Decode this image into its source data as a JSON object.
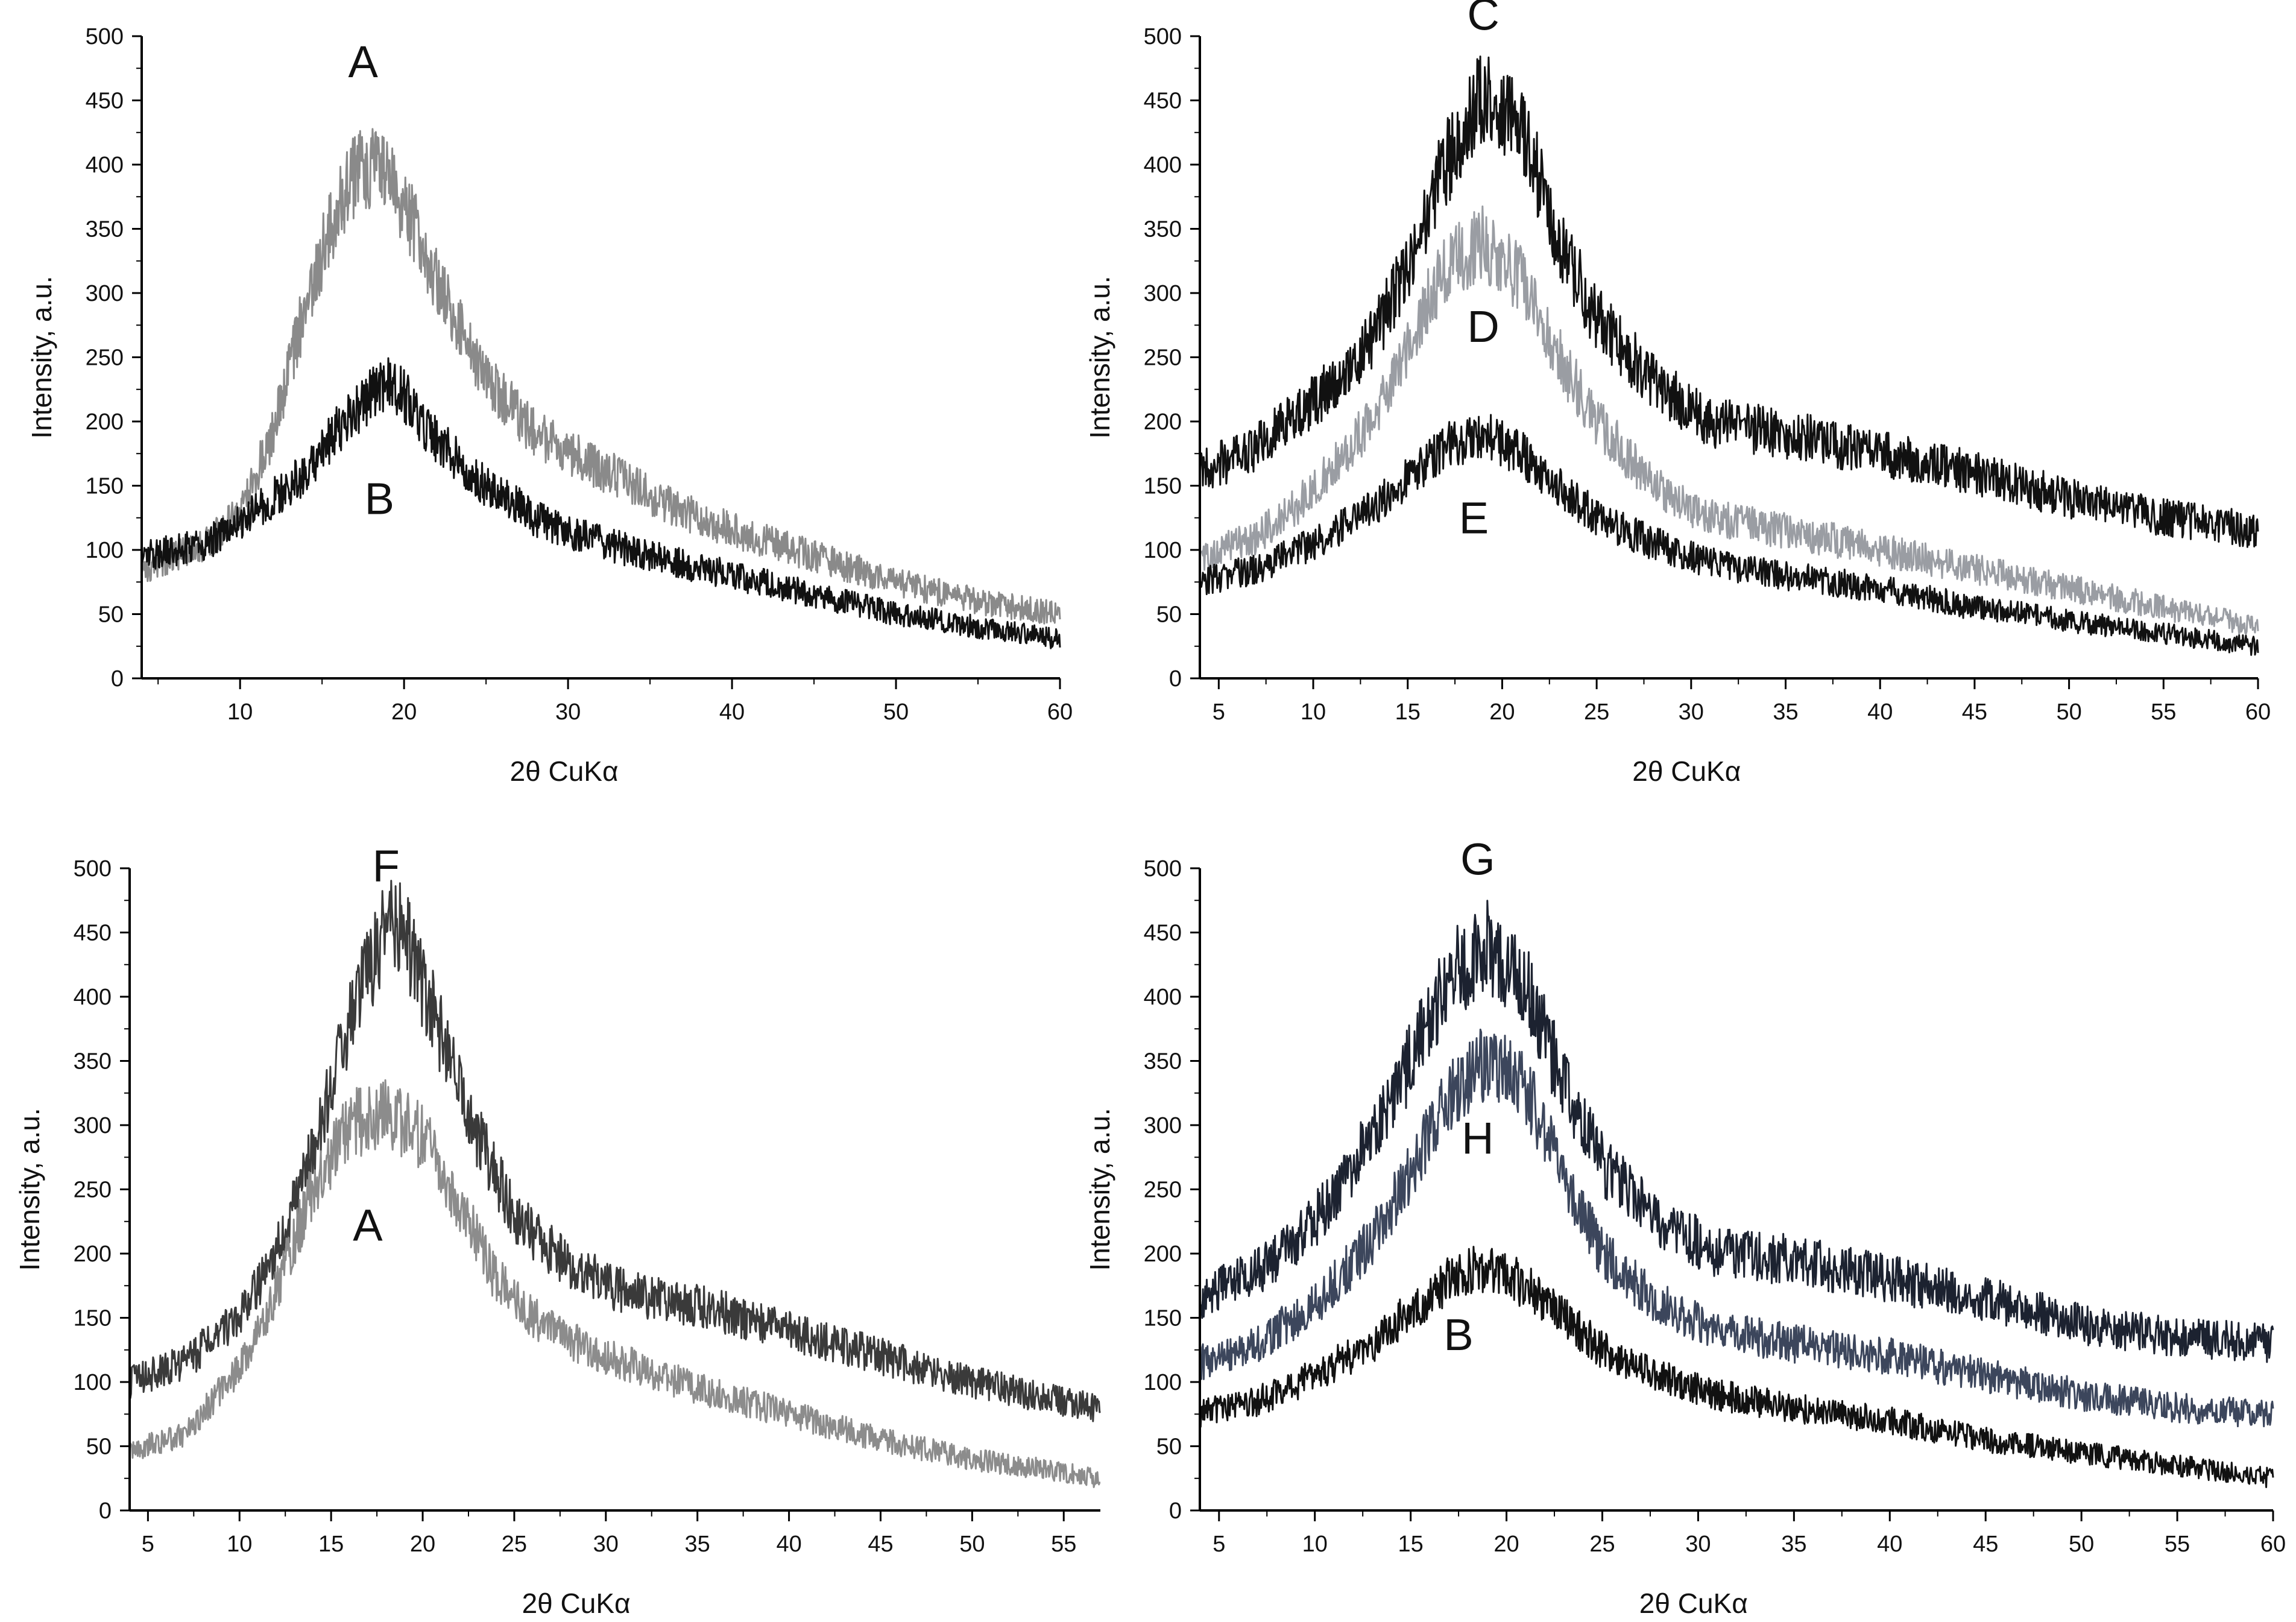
{
  "chart_data": [
    {
      "type": "line",
      "panel": "top-left",
      "xlabel": "2θ CuKα",
      "ylabel": "Intensity, a.u.",
      "xlim": [
        4,
        60
      ],
      "ylim": [
        0,
        500
      ],
      "xticks": [
        10,
        20,
        30,
        40,
        50,
        60
      ],
      "yticks": [
        0,
        50,
        100,
        150,
        200,
        250,
        300,
        350,
        400,
        450,
        500
      ],
      "grid": false,
      "series": [
        {
          "name": "A",
          "color": "#8a8a8a",
          "x": [
            4,
            8,
            10,
            12,
            14,
            16,
            17.5,
            19,
            21,
            23,
            25,
            28,
            31,
            34,
            37,
            40,
            45,
            50,
            55,
            60
          ],
          "y": [
            85,
            105,
            130,
            190,
            290,
            370,
            400,
            395,
            340,
            280,
            235,
            190,
            170,
            150,
            130,
            115,
            95,
            75,
            60,
            50
          ]
        },
        {
          "name": "B",
          "color": "#111111",
          "x": [
            4,
            8,
            11,
            14,
            16,
            18,
            19,
            20,
            22,
            25,
            28,
            31,
            35,
            40,
            45,
            50,
            55,
            60
          ],
          "y": [
            95,
            105,
            130,
            160,
            195,
            220,
            230,
            220,
            185,
            150,
            125,
            110,
            95,
            80,
            65,
            50,
            40,
            30
          ]
        }
      ],
      "annotations": [
        {
          "label": "A",
          "x": 17.5,
          "y": 468
        },
        {
          "label": "B",
          "x": 18.5,
          "y": 128
        }
      ]
    },
    {
      "type": "line",
      "panel": "top-right",
      "xlabel": "2θ CuKα",
      "ylabel": "Intensity, a.u.",
      "xlim": [
        4,
        60
      ],
      "ylim": [
        0,
        500
      ],
      "xticks": [
        5,
        10,
        15,
        20,
        25,
        30,
        35,
        40,
        45,
        50,
        55,
        60
      ],
      "yticks": [
        0,
        50,
        100,
        150,
        200,
        250,
        300,
        350,
        400,
        450,
        500
      ],
      "grid": false,
      "series": [
        {
          "name": "C",
          "color": "#111111",
          "x": [
            4,
            7,
            10,
            13,
            15,
            17,
            19,
            21,
            23,
            25,
            28,
            31,
            35,
            40,
            45,
            50,
            55,
            60
          ],
          "y": [
            160,
            180,
            215,
            260,
            320,
            400,
            455,
            430,
            340,
            280,
            230,
            200,
            190,
            175,
            160,
            140,
            125,
            115
          ]
        },
        {
          "name": "D",
          "color": "#9a9da3",
          "x": [
            4,
            7,
            10,
            13,
            15,
            17,
            19,
            21,
            23,
            25,
            28,
            31,
            35,
            40,
            45,
            50,
            55,
            60
          ],
          "y": [
            95,
            110,
            145,
            200,
            260,
            320,
            340,
            310,
            250,
            200,
            150,
            125,
            115,
            100,
            85,
            70,
            55,
            40
          ]
        },
        {
          "name": "E",
          "color": "#111111",
          "x": [
            4,
            7,
            10,
            13,
            15,
            17,
            19,
            21,
            23,
            25,
            28,
            31,
            35,
            40,
            45,
            50,
            55,
            60
          ],
          "y": [
            75,
            85,
            105,
            130,
            155,
            180,
            190,
            175,
            150,
            125,
            105,
            90,
            80,
            70,
            55,
            45,
            35,
            25
          ]
        }
      ],
      "annotations": [
        {
          "label": "C",
          "x": 19,
          "y": 505
        },
        {
          "label": "D",
          "x": 19,
          "y": 262
        },
        {
          "label": "E",
          "x": 18.5,
          "y": 113
        }
      ]
    },
    {
      "type": "line",
      "panel": "bottom-left",
      "xlabel": "2θ CuKα",
      "ylabel": "Intensity, a.u.",
      "xlim": [
        4,
        57
      ],
      "ylim": [
        0,
        500
      ],
      "xticks": [
        5,
        10,
        15,
        20,
        25,
        30,
        35,
        40,
        45,
        50,
        55
      ],
      "yticks": [
        0,
        50,
        100,
        150,
        200,
        250,
        300,
        350,
        400,
        450,
        500
      ],
      "grid": false,
      "series": [
        {
          "name": "F",
          "color": "#3a3a3a",
          "x": [
            4,
            7,
            10,
            12,
            14,
            16,
            18,
            19,
            21,
            23,
            25,
            28,
            31,
            35,
            40,
            45,
            50,
            55,
            57
          ],
          "y": [
            100,
            115,
            150,
            200,
            280,
            380,
            455,
            450,
            370,
            290,
            230,
            190,
            170,
            160,
            140,
            120,
            100,
            85,
            80
          ]
        },
        {
          "name": "A",
          "color": "#8c8c8c",
          "x": [
            4,
            7,
            10,
            12,
            14,
            16,
            18,
            20,
            22,
            24,
            26,
            29,
            32,
            35,
            40,
            45,
            50,
            55,
            57
          ],
          "y": [
            45,
            60,
            110,
            170,
            250,
            300,
            310,
            290,
            240,
            180,
            150,
            125,
            110,
            95,
            75,
            55,
            40,
            30,
            25
          ]
        }
      ],
      "annotations": [
        {
          "label": "F",
          "x": 18,
          "y": 490
        },
        {
          "label": "A",
          "x": 17,
          "y": 210
        }
      ]
    },
    {
      "type": "line",
      "panel": "bottom-right",
      "xlabel": "2θ CuKα",
      "ylabel": "Intensity, a.u.",
      "xlim": [
        4,
        60
      ],
      "ylim": [
        0,
        500
      ],
      "xticks": [
        5,
        10,
        15,
        20,
        25,
        30,
        35,
        40,
        45,
        50,
        55,
        60
      ],
      "yticks": [
        0,
        50,
        100,
        150,
        200,
        250,
        300,
        350,
        400,
        450,
        500
      ],
      "grid": false,
      "series": [
        {
          "name": "G",
          "color": "#1c2230",
          "x": [
            4,
            7,
            10,
            13,
            15,
            17,
            19,
            21,
            23,
            25,
            28,
            31,
            35,
            40,
            45,
            50,
            55,
            60
          ],
          "y": [
            165,
            185,
            225,
            290,
            350,
            415,
            440,
            410,
            330,
            270,
            225,
            200,
            195,
            180,
            165,
            145,
            135,
            130
          ]
        },
        {
          "name": "H",
          "color": "#3c465c",
          "x": [
            4,
            7,
            10,
            13,
            15,
            17,
            19,
            21,
            23,
            25,
            28,
            31,
            35,
            40,
            45,
            50,
            55,
            60
          ],
          "y": [
            115,
            130,
            160,
            210,
            265,
            320,
            350,
            330,
            260,
            200,
            160,
            140,
            130,
            120,
            105,
            90,
            80,
            75
          ]
        },
        {
          "name": "B",
          "color": "#111111",
          "x": [
            4,
            7,
            10,
            13,
            15,
            17,
            19,
            21,
            23,
            25,
            28,
            31,
            35,
            40,
            45,
            50,
            55,
            60
          ],
          "y": [
            75,
            85,
            105,
            130,
            155,
            180,
            190,
            175,
            150,
            125,
            105,
            90,
            80,
            70,
            55,
            45,
            35,
            25
          ]
        }
      ],
      "annotations": [
        {
          "label": "G",
          "x": 18.5,
          "y": 495
        },
        {
          "label": "H",
          "x": 18.5,
          "y": 278
        },
        {
          "label": "B",
          "x": 17.5,
          "y": 125
        }
      ]
    }
  ]
}
